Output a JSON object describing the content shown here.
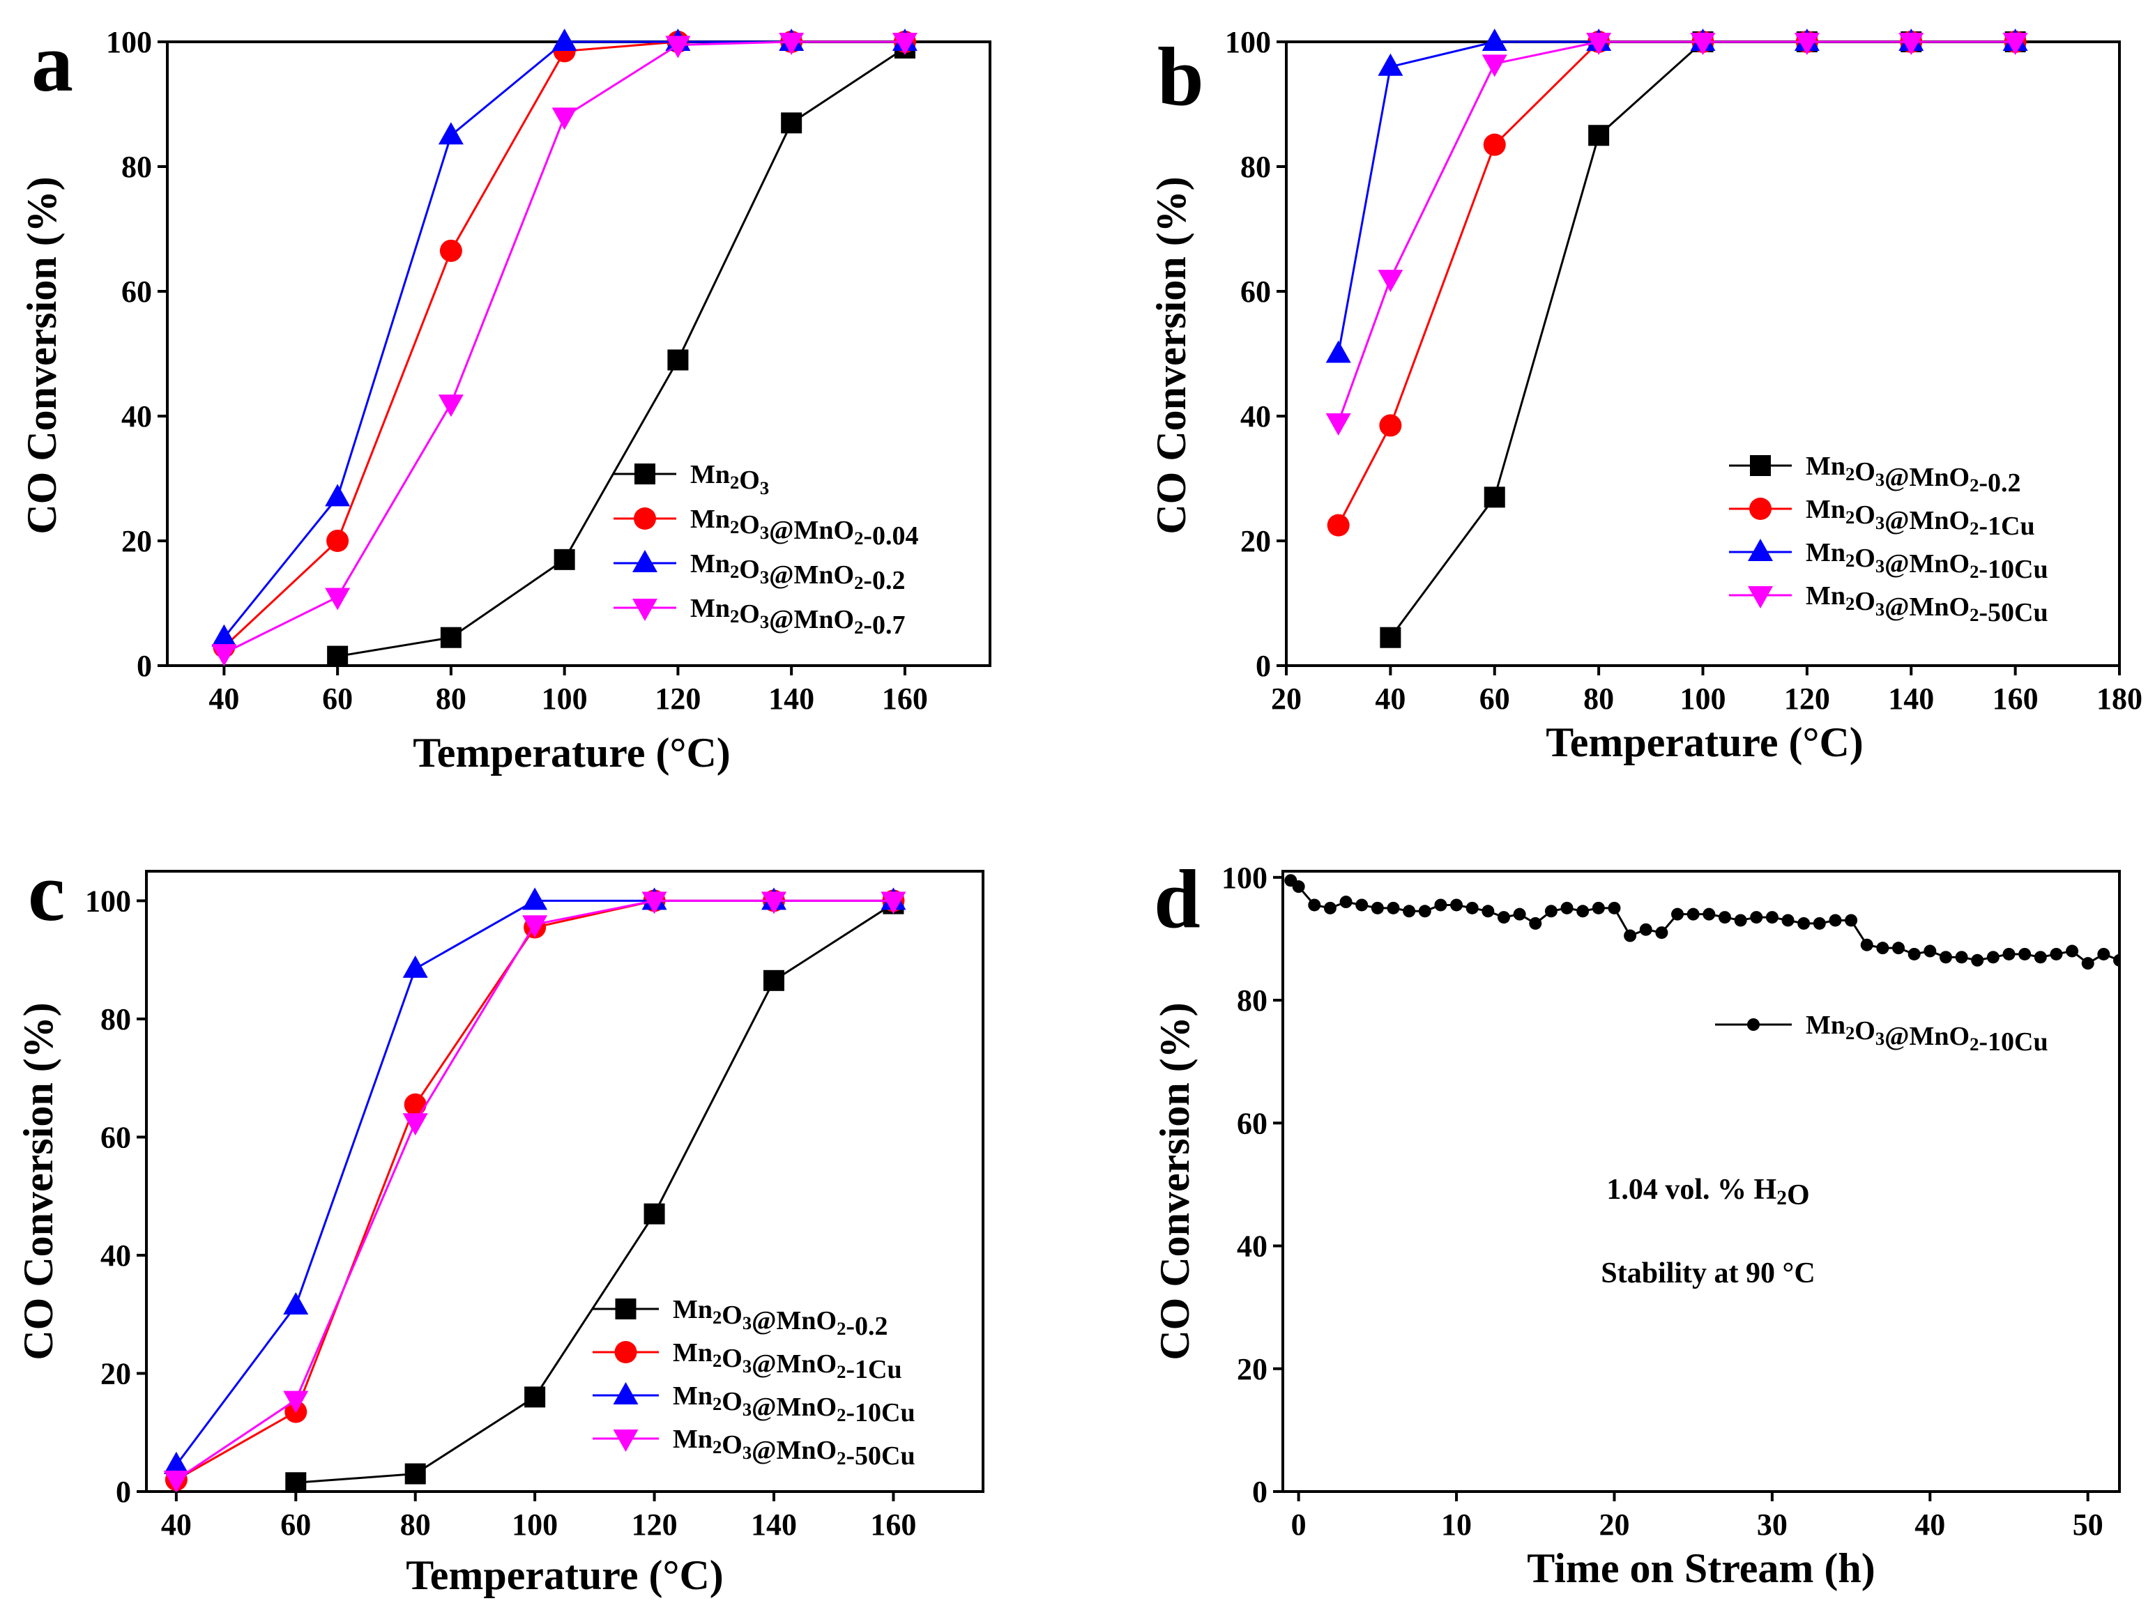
{
  "chart_data": [
    {
      "panel": "a",
      "type": "line",
      "xlabel": "Temperature (°C)",
      "ylabel": "CO Conversion (%)",
      "xlim": [
        30,
        175
      ],
      "ylim": [
        0,
        100
      ],
      "xticks": [
        40,
        60,
        80,
        100,
        120,
        140,
        160
      ],
      "yticks": [
        0,
        20,
        40,
        60,
        80,
        100
      ],
      "legend_position": "center-right",
      "series": [
        {
          "name": "Mn₂O₃",
          "color": "#000000",
          "marker": "square",
          "x": [
            60,
            80,
            100,
            120,
            140,
            160
          ],
          "y": [
            1.5,
            4.5,
            17,
            49,
            87,
            99
          ]
        },
        {
          "name": "Mn₂O₃@MnO₂-0.04",
          "color": "#ff0000",
          "marker": "circle",
          "x": [
            40,
            60,
            80,
            100,
            120,
            140,
            160
          ],
          "y": [
            3,
            20,
            66.5,
            98.5,
            100,
            100,
            100
          ]
        },
        {
          "name": "Mn₂O₃@MnO₂-0.2",
          "color": "#0000ff",
          "marker": "triangle-up",
          "x": [
            40,
            60,
            80,
            100,
            120,
            140,
            160
          ],
          "y": [
            4.5,
            27,
            85,
            100,
            100,
            100,
            100
          ]
        },
        {
          "name": "Mn₂O₃@MnO₂-0.7",
          "color": "#ff00ff",
          "marker": "triangle-down",
          "x": [
            40,
            60,
            80,
            100,
            120,
            140,
            160
          ],
          "y": [
            2,
            11,
            42,
            88,
            99.5,
            100,
            100
          ]
        }
      ]
    },
    {
      "panel": "b",
      "type": "line",
      "xlabel": "Temperature (°C)",
      "ylabel": "CO Conversion (%)",
      "xlim": [
        20,
        180
      ],
      "ylim": [
        0,
        100
      ],
      "xticks": [
        20,
        40,
        60,
        80,
        100,
        120,
        140,
        160,
        180
      ],
      "yticks": [
        0,
        20,
        40,
        60,
        80,
        100
      ],
      "legend_position": "center-right",
      "series": [
        {
          "name": "Mn₂O₃@MnO₂-0.2",
          "color": "#000000",
          "marker": "square",
          "x": [
            40,
            60,
            80,
            100,
            120,
            140,
            160
          ],
          "y": [
            4.5,
            27,
            85,
            100,
            100,
            100,
            100
          ]
        },
        {
          "name": "Mn₂O₃@MnO₂-1Cu",
          "color": "#ff0000",
          "marker": "circle",
          "x": [
            30,
            40,
            60,
            80,
            100,
            120,
            140,
            160
          ],
          "y": [
            22.5,
            38.5,
            83.5,
            100,
            100,
            100,
            100,
            100
          ]
        },
        {
          "name": "Mn₂O₃@MnO₂-10Cu",
          "color": "#0000ff",
          "marker": "triangle-up",
          "x": [
            30,
            40,
            60,
            80,
            100,
            120,
            140,
            160
          ],
          "y": [
            50,
            96,
            100,
            100,
            100,
            100,
            100,
            100
          ]
        },
        {
          "name": "Mn₂O₃@MnO₂-50Cu",
          "color": "#ff00ff",
          "marker": "triangle-down",
          "x": [
            30,
            40,
            60,
            80,
            100,
            120,
            140,
            160
          ],
          "y": [
            39,
            62,
            96.5,
            100,
            100,
            100,
            100,
            100
          ]
        }
      ]
    },
    {
      "panel": "c",
      "type": "line",
      "xlabel": "Temperature (°C)",
      "ylabel": "CO Conversion (%)",
      "xlim": [
        35,
        175
      ],
      "ylim": [
        0,
        105
      ],
      "xticks": [
        40,
        60,
        80,
        100,
        120,
        140,
        160
      ],
      "yticks": [
        0,
        20,
        40,
        60,
        80,
        100
      ],
      "legend_position": "bottom-right",
      "series": [
        {
          "name": "Mn₂O₃@MnO₂-0.2",
          "color": "#000000",
          "marker": "square",
          "x": [
            60,
            80,
            100,
            120,
            140,
            160
          ],
          "y": [
            1.5,
            3,
            16,
            47,
            86.5,
            99.5
          ]
        },
        {
          "name": "Mn₂O₃@MnO₂-1Cu",
          "color": "#ff0000",
          "marker": "circle",
          "x": [
            40,
            60,
            80,
            100,
            120,
            140,
            160
          ],
          "y": [
            2,
            13.5,
            65.5,
            95.5,
            100,
            100,
            100
          ]
        },
        {
          "name": "Mn₂O₃@MnO₂-10Cu",
          "color": "#0000ff",
          "marker": "triangle-up",
          "x": [
            40,
            60,
            80,
            100,
            120,
            140,
            160
          ],
          "y": [
            4.5,
            31.5,
            88.5,
            100,
            100,
            100,
            100
          ]
        },
        {
          "name": "Mn₂O₃@MnO₂-50Cu",
          "color": "#ff00ff",
          "marker": "triangle-down",
          "x": [
            40,
            60,
            80,
            100,
            120,
            140,
            160
          ],
          "y": [
            2,
            15.5,
            62.5,
            96,
            100,
            100,
            100
          ]
        }
      ]
    },
    {
      "panel": "d",
      "type": "line",
      "xlabel": "Time on Stream (h)",
      "ylabel": "CO Conversion (%)",
      "xlim": [
        -1,
        52
      ],
      "ylim": [
        0,
        101
      ],
      "xticks": [
        0,
        10,
        20,
        30,
        40,
        50
      ],
      "yticks": [
        0,
        20,
        40,
        60,
        80,
        100
      ],
      "legend_position": "top-right",
      "annotations": [
        "1.04 vol. % H₂O",
        "Stability at 90 °C"
      ],
      "series": [
        {
          "name": "Mn₂O₃@MnO₂-10Cu",
          "color": "#000000",
          "marker": "small-circle",
          "x": [
            -0.5,
            0,
            1,
            2,
            3,
            4,
            5,
            6,
            7,
            8,
            9,
            10,
            11,
            12,
            13,
            14,
            15,
            16,
            17,
            18,
            19,
            20,
            21,
            22,
            23,
            24,
            25,
            26,
            27,
            28,
            29,
            30,
            31,
            32,
            33,
            34,
            35,
            36,
            37,
            38,
            39,
            40,
            41,
            42,
            43,
            44,
            45,
            46,
            47,
            48,
            49,
            50,
            51,
            52
          ],
          "y": [
            99.5,
            98.5,
            95.5,
            95,
            96,
            95.5,
            95,
            95,
            94.5,
            94.5,
            95.5,
            95.5,
            95,
            94.5,
            93.5,
            94,
            92.5,
            94.5,
            95,
            94.5,
            95,
            95,
            90.5,
            91.5,
            91,
            94,
            94,
            94,
            93.5,
            93,
            93.5,
            93.5,
            93,
            92.5,
            92.5,
            93,
            93,
            89,
            88.5,
            88.5,
            87.5,
            88,
            87,
            87,
            86.5,
            87,
            87.5,
            87.5,
            87,
            87.5,
            88,
            86,
            87.5,
            86.5
          ]
        }
      ]
    }
  ]
}
